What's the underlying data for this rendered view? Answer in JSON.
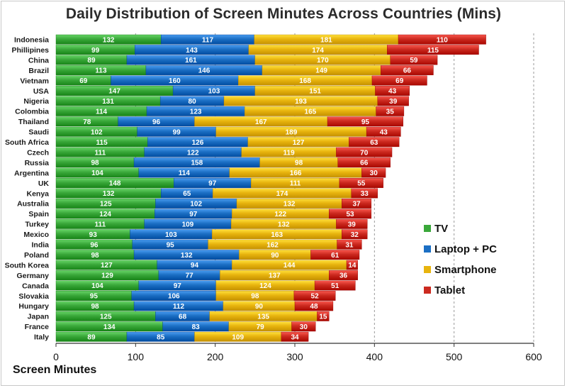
{
  "chart_data": {
    "type": "bar",
    "orientation": "horizontal",
    "stacked": true,
    "title": "Daily Distribution of Screen Minutes Across Countries (Mins)",
    "xlabel": "Screen Minutes",
    "ylabel": "",
    "xlim": [
      0,
      600
    ],
    "xticks": [
      0,
      100,
      200,
      300,
      400,
      500,
      600
    ],
    "grid": "vertical-dashed",
    "legend_position": "right",
    "categories": [
      "Indonesia",
      "Phillipines",
      "China",
      "Brazil",
      "Vietnam",
      "USA",
      "Nigeria",
      "Colombia",
      "Thailand",
      "Saudi",
      "South Africa",
      "Czech",
      "Russia",
      "Argentina",
      "UK",
      "Kenya",
      "Australia",
      "Spain",
      "Turkey",
      "Mexico",
      "India",
      "Poland",
      "South Korea",
      "Germany",
      "Canada",
      "Slovakia",
      "Hungary",
      "Japan",
      "France",
      "Italy"
    ],
    "series": [
      {
        "name": "TV",
        "color": "#3aa83a",
        "values": [
          132,
          99,
          89,
          113,
          69,
          147,
          131,
          114,
          78,
          102,
          115,
          111,
          98,
          104,
          148,
          132,
          125,
          124,
          111,
          93,
          96,
          98,
          127,
          129,
          104,
          95,
          98,
          125,
          134,
          89
        ]
      },
      {
        "name": "Laptop + PC",
        "color": "#1c6fc4",
        "values": [
          117,
          143,
          161,
          146,
          160,
          103,
          80,
          123,
          96,
          99,
          126,
          122,
          158,
          114,
          97,
          65,
          102,
          97,
          109,
          103,
          95,
          132,
          94,
          77,
          97,
          106,
          112,
          68,
          83,
          85
        ]
      },
      {
        "name": "Smartphone",
        "color": "#e8b40e",
        "values": [
          181,
          174,
          170,
          149,
          168,
          151,
          193,
          165,
          167,
          189,
          127,
          119,
          98,
          166,
          111,
          174,
          132,
          122,
          132,
          163,
          162,
          90,
          144,
          137,
          124,
          98,
          90,
          135,
          79,
          109
        ]
      },
      {
        "name": "Tablet",
        "color": "#cc2a20",
        "values": [
          110,
          115,
          59,
          66,
          69,
          43,
          39,
          35,
          95,
          43,
          63,
          70,
          66,
          30,
          55,
          33,
          37,
          53,
          39,
          32,
          31,
          61,
          14,
          36,
          51,
          52,
          48,
          15,
          30,
          34
        ]
      }
    ]
  }
}
